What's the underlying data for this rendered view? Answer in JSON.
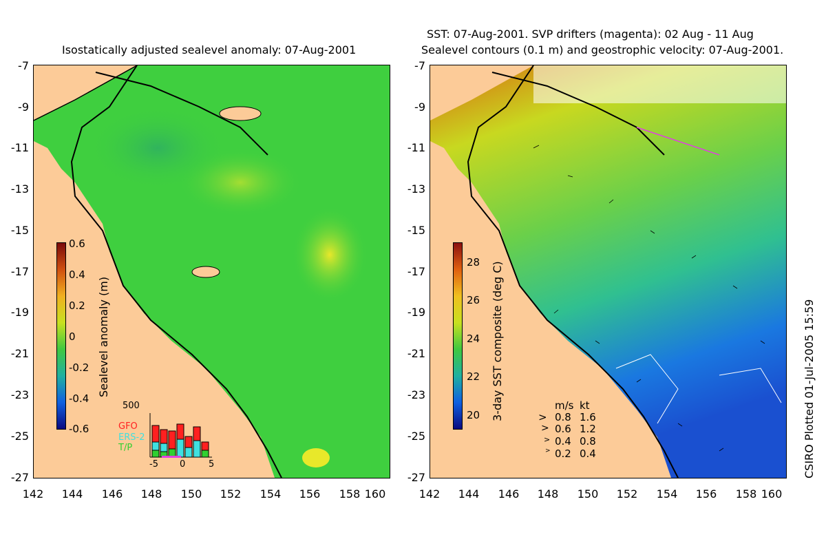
{
  "left_panel": {
    "title": "Isostatically adjusted sealevel anomaly: 07-Aug-2001",
    "colorbar_label": "Sealevel anomaly (m)",
    "colorbar_ticks": [
      "0.6",
      "0.4",
      "0.2",
      "0",
      "-0.2",
      "-0.4",
      "-0.6"
    ],
    "inset": {
      "ymax_label": "500",
      "legend": [
        {
          "label": "GFO",
          "color": "#ff2020"
        },
        {
          "label": "ERS-2",
          "color": "#40e0e0"
        },
        {
          "label": "T/P",
          "color": "#30d030"
        }
      ],
      "xticks": [
        "-5",
        "0",
        "5"
      ]
    }
  },
  "right_panel": {
    "title_line1": "SST: 07-Aug-2001. SVP drifters (magenta): 02 Aug - 11 Aug",
    "title_line2": "Sealevel contours (0.1 m) and geostrophic velocity: 07-Aug-2001.",
    "colorbar_label": "3-day SST composite (deg C)",
    "colorbar_ticks": [
      "28",
      "26",
      "24",
      "22",
      "20"
    ],
    "velocity_legend": {
      "header": [
        "m/s",
        "kt"
      ],
      "rows": [
        [
          "0.8",
          "1.6"
        ],
        [
          "0.6",
          "1.2"
        ],
        [
          "0.4",
          "0.8"
        ],
        [
          "0.2",
          "0.4"
        ]
      ]
    }
  },
  "axes": {
    "yticks": [
      "-7",
      "-9",
      "-11",
      "-13",
      "-15",
      "-17",
      "-19",
      "-21",
      "-23",
      "-25",
      "-27"
    ],
    "xticks": [
      "142",
      "144",
      "146",
      "148",
      "150",
      "152",
      "154",
      "156",
      "158",
      "160"
    ]
  },
  "credit": "CSIRO Plotted 01-Jul-2005 15:59",
  "colors": {
    "land": "#fccb98",
    "sla_ocean": "#3fcf3f",
    "sst_warm": "#e07010",
    "sst_mid": "#9ee030",
    "sst_cool": "#1060e0"
  }
}
